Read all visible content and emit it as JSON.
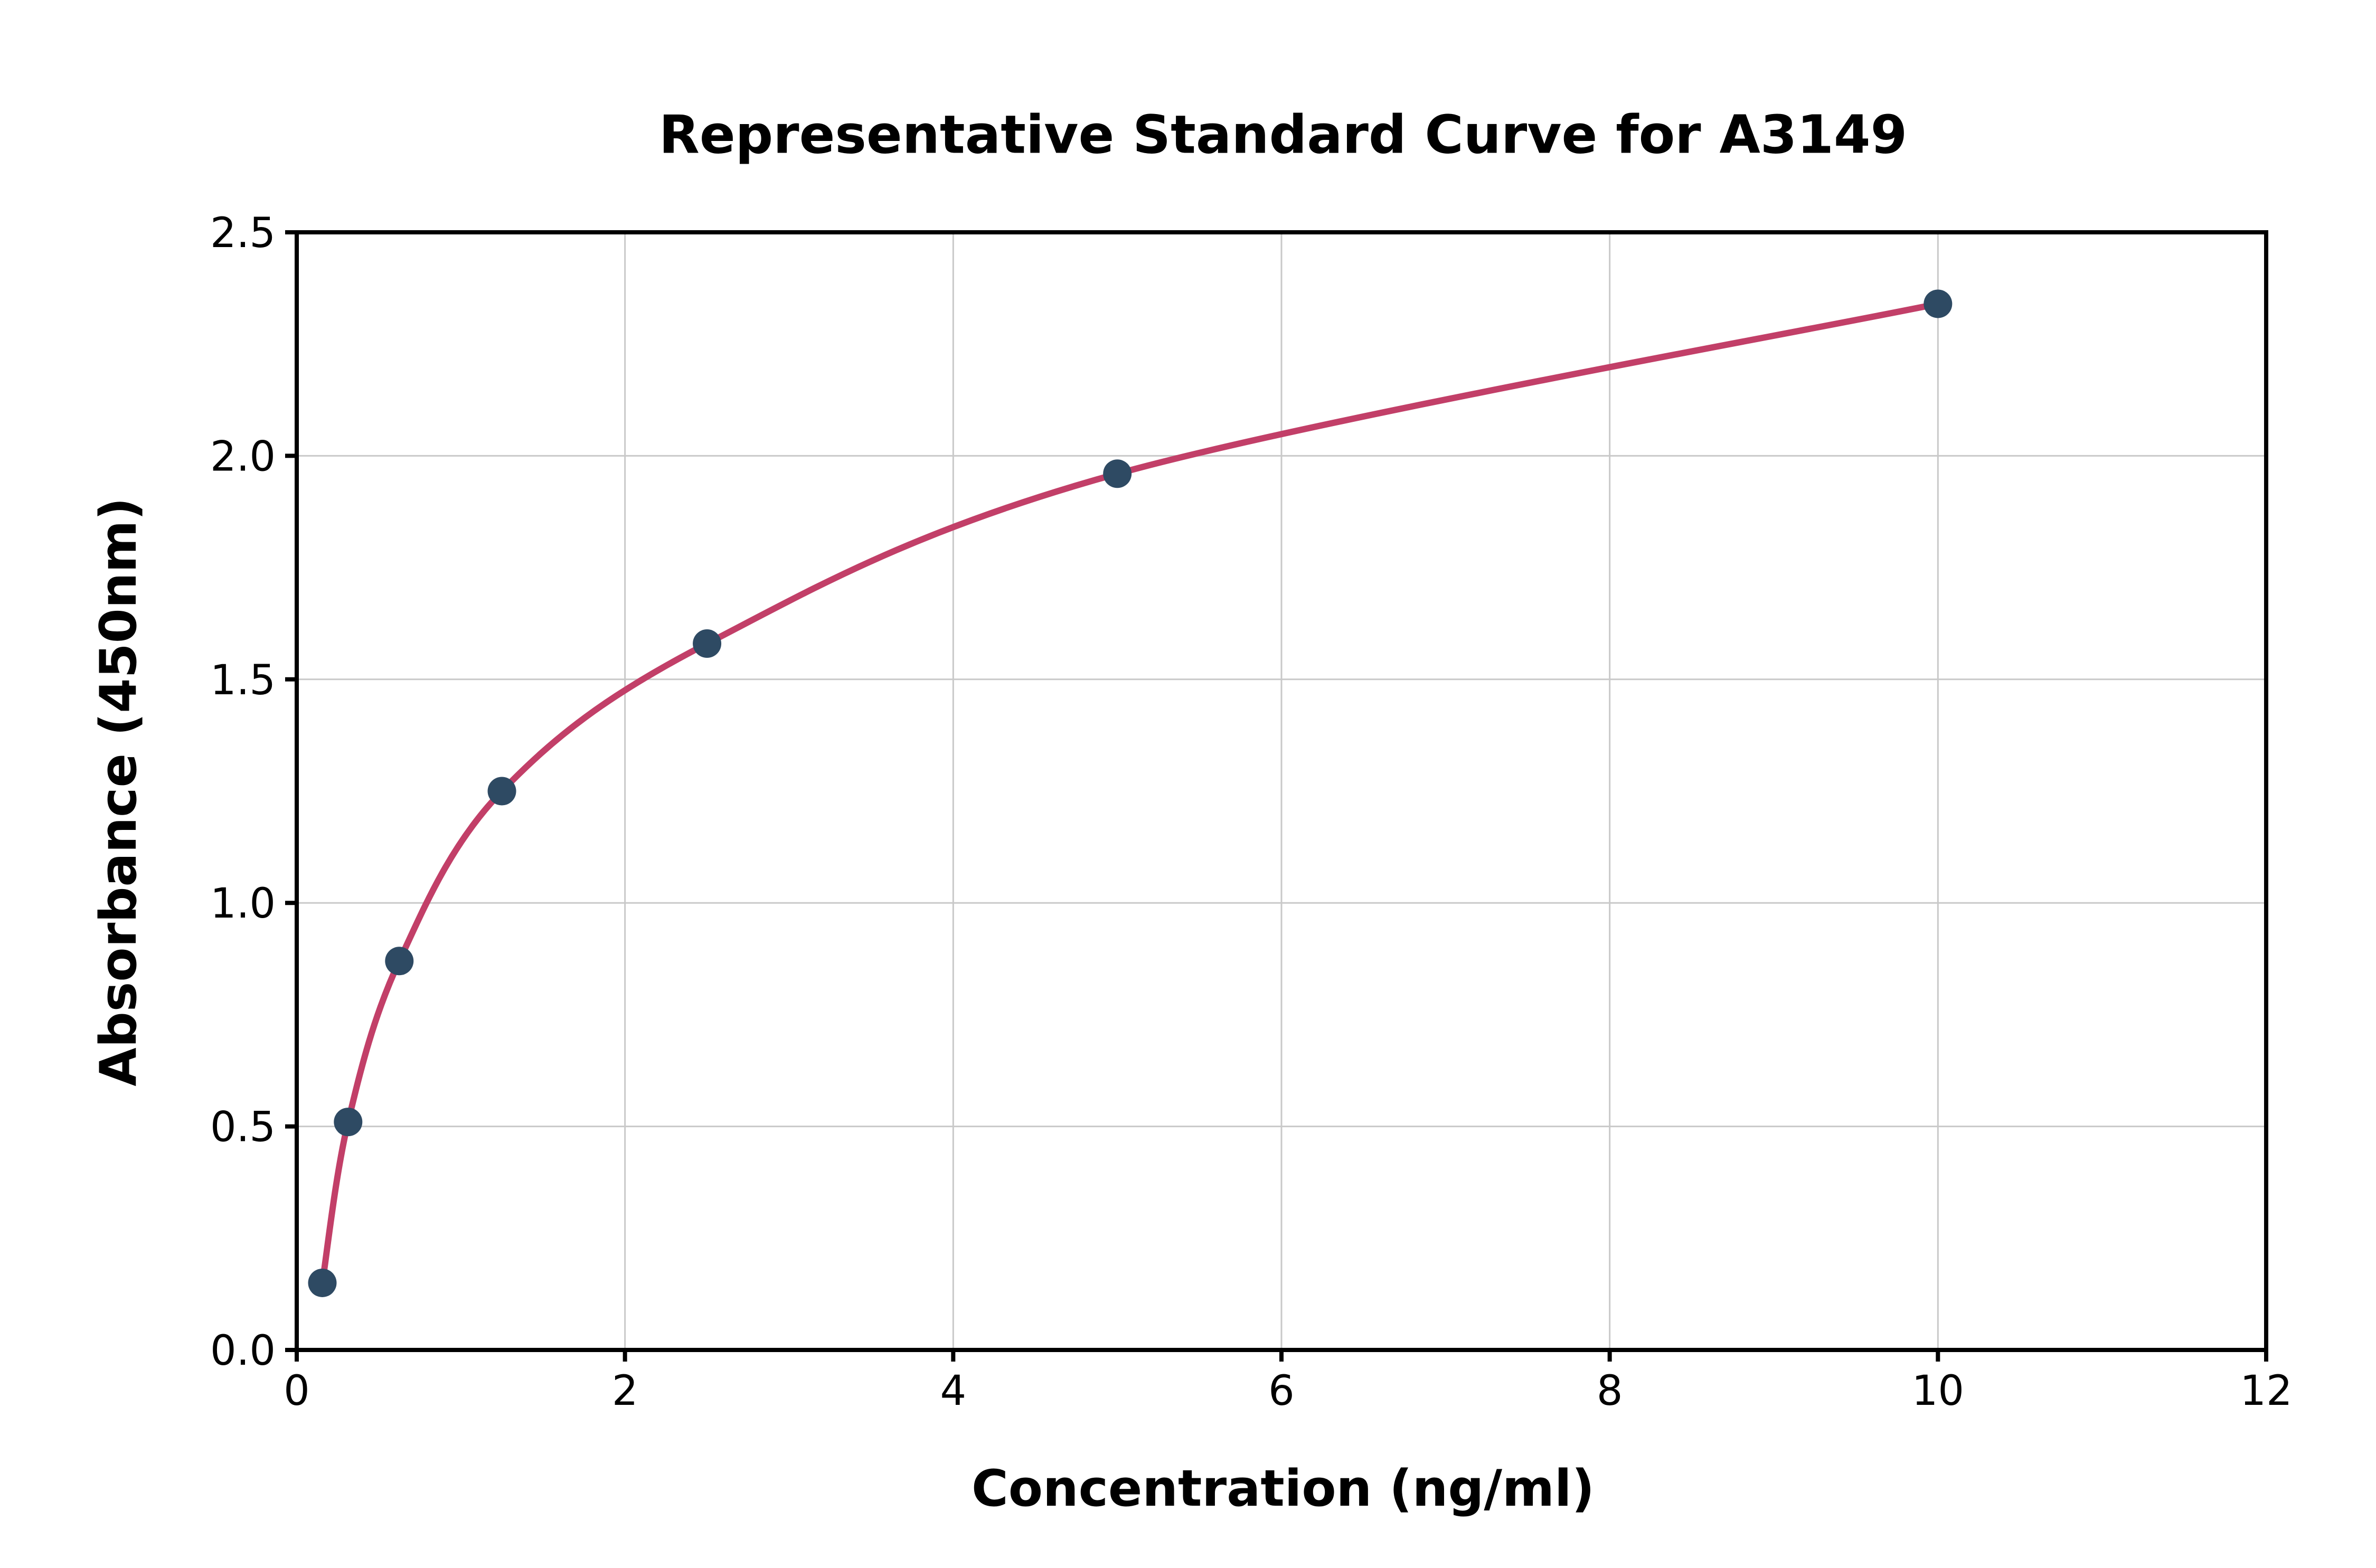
{
  "chart_data": {
    "type": "scatter",
    "title": "Representative Standard Curve for A3149",
    "xlabel": "Concentration (ng/ml)",
    "ylabel": "Absorbance (450nm)",
    "xlim": [
      0,
      12
    ],
    "ylim": [
      0,
      2.5
    ],
    "xtick_values": [
      0,
      2,
      4,
      6,
      8,
      10,
      12
    ],
    "xtick_labels": [
      "0",
      "2",
      "4",
      "6",
      "8",
      "10",
      "12"
    ],
    "ytick_values": [
      0,
      0.5,
      1.0,
      1.5,
      2.0,
      2.5
    ],
    "ytick_labels": [
      "0.0",
      "0.5",
      "1.0",
      "1.5",
      "2.0",
      "2.5"
    ],
    "grid": true,
    "legend": false,
    "series": [
      {
        "name": "fitted-curve",
        "type": "line",
        "x": [
          0.156,
          0.313,
          0.625,
          1.25,
          2.5,
          5,
          10
        ],
        "y": [
          0.15,
          0.51,
          0.87,
          1.25,
          1.58,
          1.96,
          2.34
        ],
        "color": "#c23f68",
        "line_width": 12
      },
      {
        "name": "standard-points",
        "type": "scatter",
        "x": [
          0.156,
          0.313,
          0.625,
          1.25,
          2.5,
          5,
          10
        ],
        "y": [
          0.15,
          0.51,
          0.87,
          1.25,
          1.58,
          1.96,
          2.34
        ],
        "color": "#2e4a63",
        "marker_radius": 27
      }
    ],
    "colors": {
      "grid": "#c9c9c9",
      "spine": "#000000",
      "background": "#ffffff"
    }
  }
}
